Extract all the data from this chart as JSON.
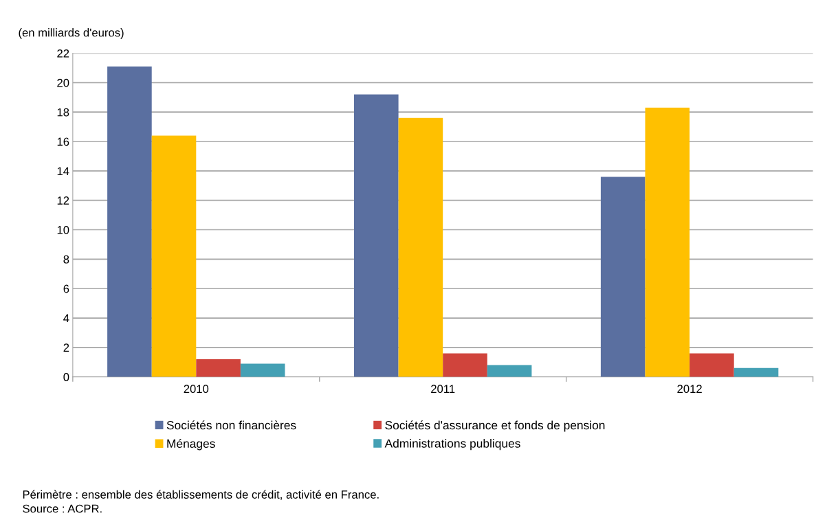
{
  "chart_data": {
    "type": "bar",
    "ylabel": "(en milliards d'euros)",
    "categories": [
      "2010",
      "2011",
      "2012"
    ],
    "series": [
      {
        "name": "Sociétés non financières",
        "color": "#5a6fa0",
        "values": [
          21.1,
          19.2,
          13.6
        ]
      },
      {
        "name": "Ménages",
        "color": "#ffc000",
        "values": [
          16.4,
          17.6,
          18.3
        ]
      },
      {
        "name": "Sociétés d'assurance et fonds de pension",
        "color": "#d0443c",
        "values": [
          1.2,
          1.6,
          1.6
        ]
      },
      {
        "name": "Administrations publiques",
        "color": "#44a0b4",
        "values": [
          0.9,
          0.8,
          0.6
        ]
      }
    ],
    "ylim": [
      0,
      22
    ],
    "yticks": [
      0,
      2,
      4,
      6,
      8,
      10,
      12,
      14,
      16,
      18,
      20,
      22
    ],
    "grid": "y",
    "legend": "bottom",
    "annotations": [
      "Périmètre : ensemble des établissements de crédit, activité en France.",
      "Source : ACPR."
    ]
  }
}
